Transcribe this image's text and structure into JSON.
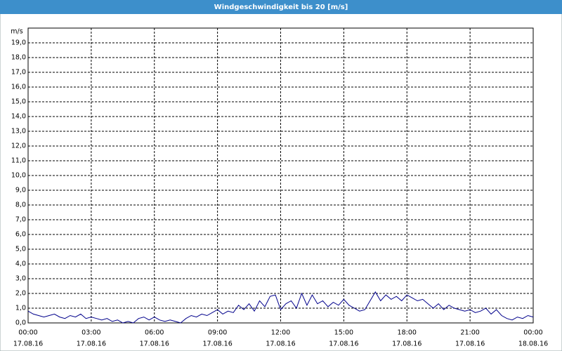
{
  "chart_data": {
    "type": "line",
    "title": "Windgeschwindigkeit bis 20 [m/s]",
    "y_label": "m/s",
    "color": "#00008b",
    "grid": true,
    "x": [
      0,
      0.25,
      0.5,
      0.75,
      1,
      1.25,
      1.5,
      1.75,
      2,
      2.25,
      2.5,
      2.75,
      3,
      3.25,
      3.5,
      3.75,
      4,
      4.25,
      4.5,
      4.75,
      5,
      5.25,
      5.5,
      5.75,
      6,
      6.25,
      6.5,
      6.75,
      7,
      7.25,
      7.5,
      7.75,
      8,
      8.25,
      8.5,
      8.75,
      9,
      9.25,
      9.5,
      9.75,
      10,
      10.25,
      10.5,
      10.75,
      11,
      11.25,
      11.5,
      11.75,
      12,
      12.25,
      12.5,
      12.75,
      13,
      13.25,
      13.5,
      13.75,
      14,
      14.25,
      14.5,
      14.75,
      15,
      15.25,
      15.5,
      15.75,
      16,
      16.25,
      16.5,
      16.75,
      17,
      17.25,
      17.5,
      17.75,
      18,
      18.25,
      18.5,
      18.75,
      19,
      19.25,
      19.5,
      19.75,
      20,
      20.25,
      20.5,
      20.75,
      21,
      21.25,
      21.5,
      21.75,
      22,
      22.25,
      22.5,
      22.75,
      23,
      23.25,
      23.5,
      23.75,
      24
    ],
    "values": [
      0.8,
      0.6,
      0.5,
      0.4,
      0.5,
      0.6,
      0.4,
      0.3,
      0.5,
      0.4,
      0.6,
      0.3,
      0.4,
      0.3,
      0.2,
      0.3,
      0.1,
      0.2,
      0.0,
      0.1,
      0.0,
      0.3,
      0.4,
      0.2,
      0.4,
      0.2,
      0.1,
      0.2,
      0.1,
      0.0,
      0.3,
      0.5,
      0.4,
      0.6,
      0.5,
      0.7,
      0.9,
      0.6,
      0.8,
      0.7,
      1.2,
      0.9,
      1.3,
      0.8,
      1.5,
      1.1,
      1.8,
      1.9,
      0.9,
      1.3,
      1.5,
      1.0,
      2.0,
      1.2,
      1.9,
      1.3,
      1.5,
      1.1,
      1.4,
      1.2,
      1.6,
      1.2,
      1.0,
      0.8,
      0.9,
      1.5,
      2.1,
      1.5,
      1.9,
      1.6,
      1.8,
      1.5,
      1.9,
      1.7,
      1.5,
      1.6,
      1.3,
      1.0,
      1.3,
      0.9,
      1.2,
      1.0,
      0.9,
      0.8,
      0.9,
      0.7,
      0.8,
      1.0,
      0.6,
      0.9,
      0.5,
      0.3,
      0.2,
      0.4,
      0.3,
      0.5,
      0.4
    ],
    "xlim": [
      0,
      24
    ],
    "xticks": [
      {
        "value": 0,
        "label": "00:00",
        "date": "17.08.16"
      },
      {
        "value": 3,
        "label": "03:00",
        "date": "17.08.16"
      },
      {
        "value": 6,
        "label": "06:00",
        "date": "17.08.16"
      },
      {
        "value": 9,
        "label": "09:00",
        "date": "17.08.16"
      },
      {
        "value": 12,
        "label": "12:00",
        "date": "17.08.16"
      },
      {
        "value": 15,
        "label": "15:00",
        "date": "17.08.16"
      },
      {
        "value": 18,
        "label": "18:00",
        "date": "17.08.16"
      },
      {
        "value": 21,
        "label": "21:00",
        "date": "17.08.16"
      },
      {
        "value": 24,
        "label": "00:00",
        "date": "18.08.16"
      }
    ],
    "ylim": [
      0,
      20
    ],
    "yticks": [
      {
        "value": 0,
        "label": "0,0"
      },
      {
        "value": 1,
        "label": "1,0"
      },
      {
        "value": 2,
        "label": "2,0"
      },
      {
        "value": 3,
        "label": "3,0"
      },
      {
        "value": 4,
        "label": "4,0"
      },
      {
        "value": 5,
        "label": "5,0"
      },
      {
        "value": 6,
        "label": "6,0"
      },
      {
        "value": 7,
        "label": "7,0"
      },
      {
        "value": 8,
        "label": "8,0"
      },
      {
        "value": 9,
        "label": "9,0"
      },
      {
        "value": 10,
        "label": "10,0"
      },
      {
        "value": 11,
        "label": "11,0"
      },
      {
        "value": 12,
        "label": "12,0"
      },
      {
        "value": 13,
        "label": "13,0"
      },
      {
        "value": 14,
        "label": "14,0"
      },
      {
        "value": 15,
        "label": "15,0"
      },
      {
        "value": 16,
        "label": "16,0"
      },
      {
        "value": 17,
        "label": "17,0"
      },
      {
        "value": 18,
        "label": "18,0"
      },
      {
        "value": 19,
        "label": "19,0"
      }
    ]
  }
}
